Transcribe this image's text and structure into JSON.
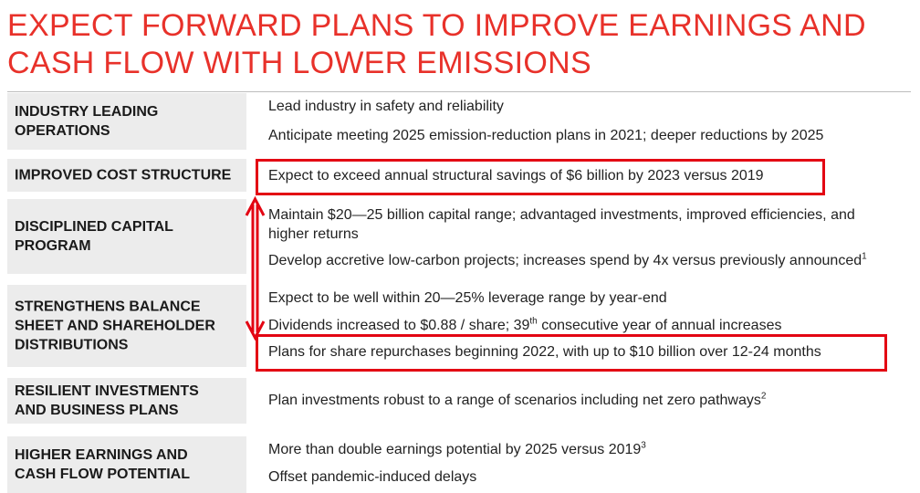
{
  "title": {
    "line1": "EXPECT FORWARD PLANS TO IMPROVE EARNINGS AND",
    "line2": "CASH FLOW WITH LOWER EMISSIONS"
  },
  "colors": {
    "title": "#e8312a",
    "label_bg": "#ececec",
    "highlight": "#e30613"
  },
  "rows": [
    {
      "label": [
        "INDUSTRY LEADING",
        "OPERATIONS"
      ],
      "items": [
        {
          "text": "Lead industry in safety and reliability"
        },
        {
          "text": "Anticipate meeting 2025 emission-reduction plans in 2021; deeper reductions by 2025"
        }
      ]
    },
    {
      "label": [
        "IMPROVED COST STRUCTURE"
      ],
      "items": [
        {
          "text": "Expect to exceed annual structural savings of $6 billion by 2023 versus 2019"
        }
      ]
    },
    {
      "label": [
        "DISCIPLINED CAPITAL",
        "PROGRAM"
      ],
      "items": [
        {
          "text_line1": "Maintain $20—25 billion capital range; advantaged investments, improved efficiencies, and",
          "text_line2": "higher returns"
        },
        {
          "text": "Develop accretive low-carbon projects; increases spend by 4x versus previously announced",
          "sup": "1"
        }
      ]
    },
    {
      "label": [
        "STRENGTHENS BALANCE",
        "SHEET AND SHAREHOLDER",
        "DISTRIBUTIONS"
      ],
      "items": [
        {
          "text": "Expect to be well within 20—25% leverage range by year-end"
        },
        {
          "text_before": "Dividends increased to $0.88 / share; 39",
          "sup": "th",
          "text_after": " consecutive year of annual increases"
        },
        {
          "text": "Plans for share repurchases beginning 2022, with up to $10 billion over 12-24 months"
        }
      ]
    },
    {
      "label": [
        "RESILIENT INVESTMENTS",
        "AND BUSINESS PLANS"
      ],
      "items": [
        {
          "text": "Plan investments robust to a range of scenarios including net zero pathways",
          "sup": "2"
        }
      ]
    },
    {
      "label": [
        "HIGHER EARNINGS AND",
        "CASH FLOW POTENTIAL"
      ],
      "items": [
        {
          "text": "More than double earnings potential by 2025 versus 2019",
          "sup": "3"
        },
        {
          "text": "Offset pandemic-induced delays"
        }
      ]
    }
  ]
}
